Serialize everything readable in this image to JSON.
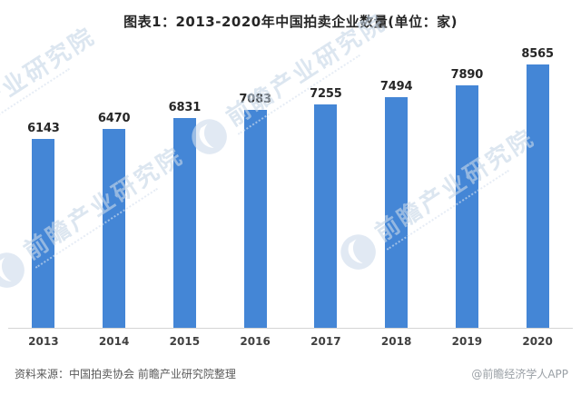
{
  "title": "图表1：2013-2020年中国拍卖企业数量(单位：家)",
  "chart_data": {
    "type": "bar",
    "title": "图表1：2013-2020年中国拍卖企业数量(单位：家)",
    "categories": [
      "2013",
      "2014",
      "2015",
      "2016",
      "2017",
      "2018",
      "2019",
      "2020"
    ],
    "values": [
      6143,
      6470,
      6831,
      7083,
      7255,
      7494,
      7890,
      8565
    ],
    "xlabel": "",
    "ylabel": "",
    "ylim": [
      0,
      9000
    ],
    "grid": false,
    "legend": "none",
    "value_labels_shown": true,
    "bar_color": "#4486d6"
  },
  "footer": {
    "source": "资料来源：中国拍卖协会 前瞻产业研究院整理",
    "credit": "@前瞻经济学人APP"
  },
  "watermark": {
    "text": "前瞻产业研究院",
    "color": "#c7d7e8"
  },
  "colors": {
    "bar": "#4486d6",
    "axis_line": "#d4d4d4",
    "title_text": "#262626",
    "value_label_text": "#262626",
    "tick_text": "#404040",
    "source_text": "#595959",
    "credit_text": "#9aa0a6"
  }
}
